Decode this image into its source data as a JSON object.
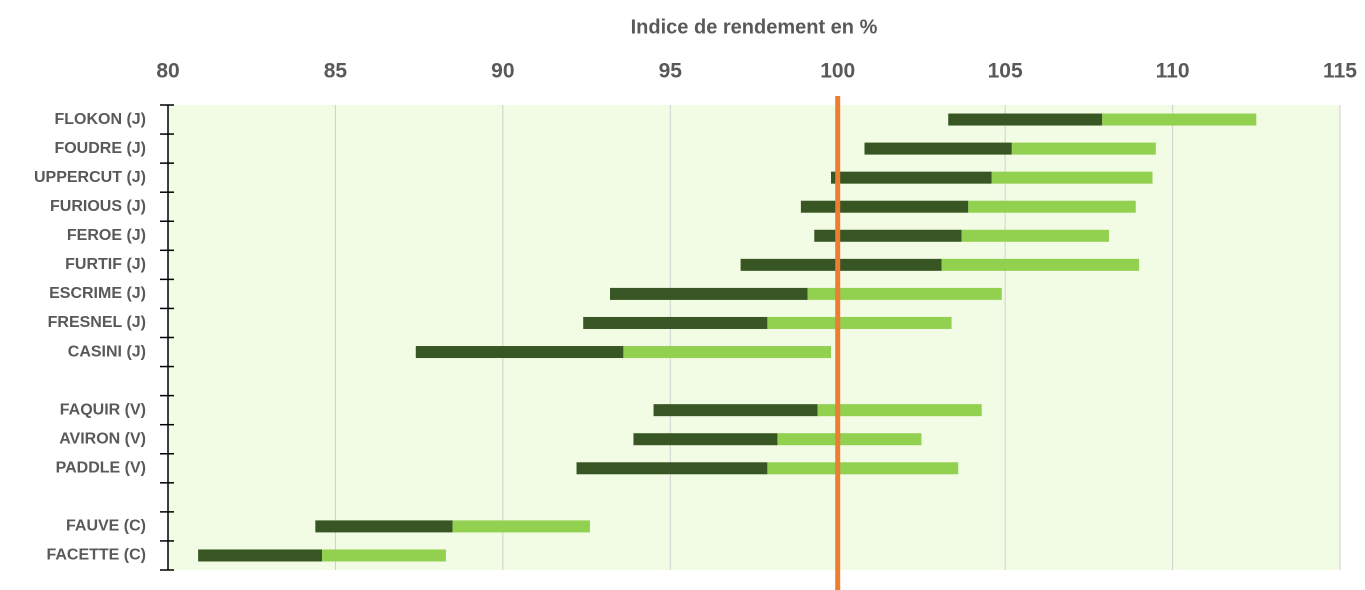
{
  "chart_data": {
    "type": "range-bar",
    "title": "Indice de rendement en %",
    "categories": [
      "FLOKON (J)",
      "FOUDRE (J)",
      "UPPERCUT (J)",
      "FURIOUS (J)",
      "FEROE (J)",
      "FURTIF (J)",
      "ESCRIME (J)",
      "FRESNEL (J)",
      "CASINI (J)",
      null,
      "FAQUIR (V)",
      "AVIRON (V)",
      "PADDLE (V)",
      null,
      "FAUVE (C)",
      "FACETTE (C)"
    ],
    "bases": [
      103.3,
      100.8,
      99.8,
      98.9,
      99.3,
      97.1,
      93.2,
      92.4,
      87.4,
      null,
      94.5,
      93.9,
      92.2,
      null,
      84.4,
      80.9
    ],
    "series": [
      {
        "color": "#375623",
        "values": [
          4.6,
          4.4,
          4.8,
          5.0,
          4.4,
          6.0,
          5.9,
          5.5,
          6.2,
          null,
          4.9,
          4.3,
          5.7,
          null,
          4.1,
          3.7
        ]
      },
      {
        "color": "#92d050",
        "values": [
          4.6,
          4.3,
          4.8,
          5.0,
          4.4,
          5.9,
          5.8,
          5.5,
          6.2,
          null,
          4.9,
          4.3,
          5.7,
          null,
          4.1,
          3.7
        ]
      }
    ],
    "xlim": [
      80,
      115
    ],
    "xticks": [
      80,
      85,
      90,
      95,
      100,
      105,
      110,
      115
    ],
    "grid": true,
    "plot_background": "#f2fbe3",
    "reference_line": {
      "value": 100,
      "color": "#ed7d31"
    }
  }
}
